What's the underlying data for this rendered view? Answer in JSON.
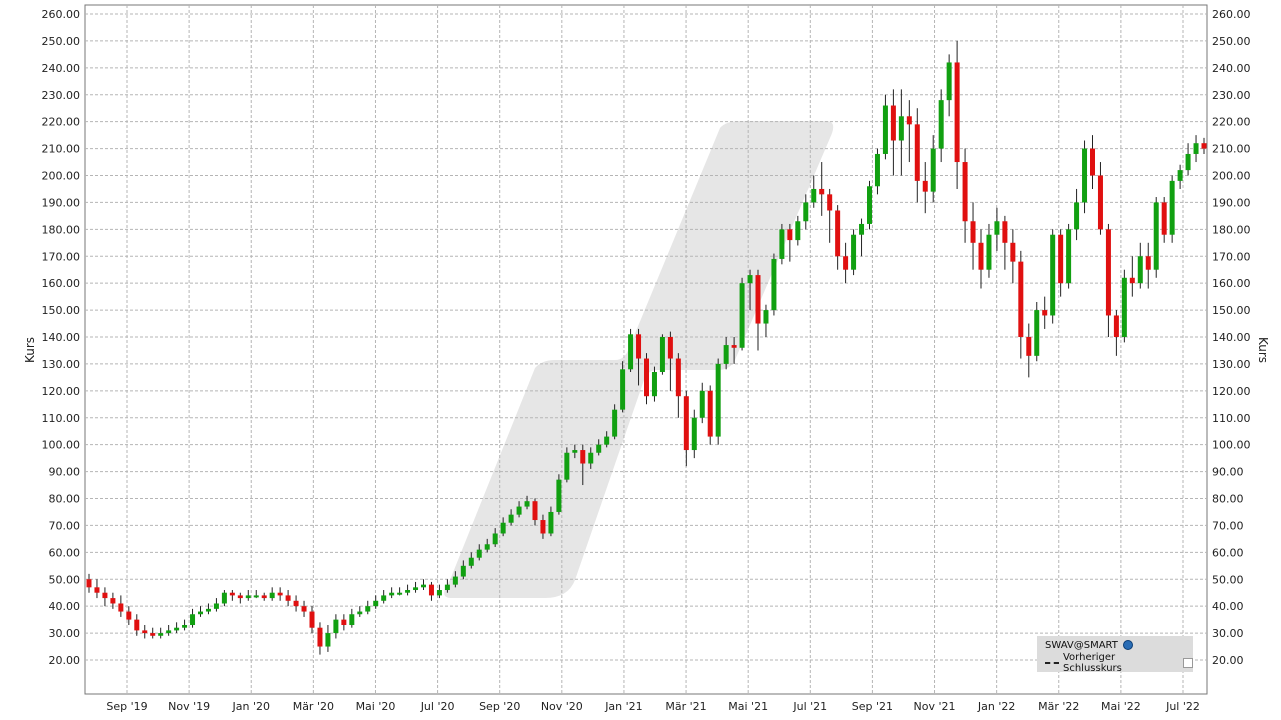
{
  "chart_data": {
    "type": "candlestick",
    "ylabel": "Kurs",
    "ylim": [
      10,
      265
    ],
    "yticks": [
      20,
      30,
      40,
      50,
      60,
      70,
      80,
      90,
      100,
      110,
      120,
      130,
      140,
      150,
      160,
      170,
      180,
      190,
      200,
      210,
      220,
      230,
      240,
      250,
      260
    ],
    "ytick_labels": [
      "20.00",
      "30.00",
      "40.00",
      "50.00",
      "60.00",
      "70.00",
      "80.00",
      "90.00",
      "100.00",
      "110.00",
      "120.00",
      "130.00",
      "140.00",
      "150.00",
      "160.00",
      "170.00",
      "180.00",
      "190.00",
      "200.00",
      "210.00",
      "220.00",
      "230.00",
      "240.00",
      "250.00",
      "260.00"
    ],
    "xticks": [
      "Sep '19",
      "Nov '19",
      "Jan '20",
      "Mär '20",
      "Mai '20",
      "Jul '20",
      "Sep '20",
      "Nov '20",
      "Jan '21",
      "Mär '21",
      "Mai '21",
      "Jul '21",
      "Sep '21",
      "Nov '21",
      "Jan '22",
      "Mär '22",
      "Mai '22",
      "Jul '22"
    ],
    "grid": true,
    "up_color": "#11a011",
    "down_color": "#e01010",
    "candles": [
      [
        50,
        47,
        52,
        45
      ],
      [
        47,
        45,
        50,
        43
      ],
      [
        45,
        43,
        47,
        40
      ],
      [
        43,
        41,
        45,
        39
      ],
      [
        41,
        38,
        44,
        36
      ],
      [
        38,
        35,
        40,
        33
      ],
      [
        35,
        31,
        37,
        29
      ],
      [
        31,
        30,
        33,
        28
      ],
      [
        30,
        29,
        32,
        28
      ],
      [
        29,
        30,
        32,
        28
      ],
      [
        30,
        31,
        33,
        29
      ],
      [
        31,
        32,
        34,
        30
      ],
      [
        32,
        33,
        35,
        31
      ],
      [
        33,
        37,
        39,
        32
      ],
      [
        37,
        38,
        40,
        36
      ],
      [
        38,
        39,
        41,
        37
      ],
      [
        39,
        41,
        43,
        38
      ],
      [
        41,
        45,
        46,
        40
      ],
      [
        45,
        44,
        46,
        42
      ],
      [
        44,
        43,
        45,
        41
      ],
      [
        43,
        44,
        46,
        42
      ],
      [
        44,
        44,
        46,
        43
      ],
      [
        44,
        43,
        45,
        42
      ],
      [
        43,
        45,
        47,
        42
      ],
      [
        45,
        44,
        47,
        42
      ],
      [
        44,
        42,
        46,
        40
      ],
      [
        42,
        40,
        44,
        38
      ],
      [
        40,
        38,
        42,
        36
      ],
      [
        38,
        32,
        40,
        30
      ],
      [
        32,
        25,
        34,
        22
      ],
      [
        25,
        30,
        33,
        23
      ],
      [
        30,
        35,
        37,
        28
      ],
      [
        35,
        33,
        37,
        31
      ],
      [
        33,
        37,
        39,
        32
      ],
      [
        37,
        38,
        40,
        36
      ],
      [
        38,
        40,
        42,
        37
      ],
      [
        40,
        42,
        44,
        39
      ],
      [
        42,
        44,
        46,
        41
      ],
      [
        44,
        45,
        47,
        43
      ],
      [
        45,
        45,
        47,
        44
      ],
      [
        45,
        46,
        48,
        44
      ],
      [
        46,
        47,
        49,
        45
      ],
      [
        47,
        48,
        50,
        46
      ],
      [
        48,
        44,
        49,
        42
      ],
      [
        44,
        46,
        48,
        43
      ],
      [
        46,
        48,
        50,
        45
      ],
      [
        48,
        51,
        53,
        47
      ],
      [
        51,
        55,
        57,
        50
      ],
      [
        55,
        58,
        60,
        54
      ],
      [
        58,
        61,
        63,
        57
      ],
      [
        61,
        63,
        65,
        60
      ],
      [
        63,
        67,
        69,
        62
      ],
      [
        67,
        71,
        73,
        66
      ],
      [
        71,
        74,
        76,
        70
      ],
      [
        74,
        77,
        79,
        73
      ],
      [
        77,
        79,
        81,
        76
      ],
      [
        79,
        72,
        80,
        70
      ],
      [
        72,
        67,
        74,
        65
      ],
      [
        67,
        75,
        77,
        66
      ],
      [
        75,
        87,
        89,
        74
      ],
      [
        87,
        97,
        99,
        86
      ],
      [
        97,
        98,
        100,
        95
      ],
      [
        98,
        93,
        100,
        85
      ],
      [
        93,
        97,
        99,
        91
      ],
      [
        97,
        100,
        102,
        96
      ],
      [
        100,
        103,
        105,
        99
      ],
      [
        103,
        113,
        115,
        102
      ],
      [
        113,
        128,
        131,
        112
      ],
      [
        128,
        141,
        143,
        127
      ],
      [
        141,
        132,
        143,
        122
      ],
      [
        132,
        118,
        134,
        115
      ],
      [
        118,
        127,
        129,
        116
      ],
      [
        127,
        140,
        141,
        126
      ],
      [
        140,
        132,
        142,
        120
      ],
      [
        132,
        118,
        134,
        110
      ],
      [
        118,
        98,
        120,
        92
      ],
      [
        98,
        110,
        113,
        95
      ],
      [
        110,
        120,
        123,
        108
      ],
      [
        120,
        103,
        122,
        100
      ],
      [
        103,
        130,
        132,
        100
      ],
      [
        130,
        137,
        140,
        128
      ],
      [
        137,
        136,
        140,
        130
      ],
      [
        136,
        160,
        162,
        135
      ],
      [
        160,
        163,
        165,
        150
      ],
      [
        163,
        145,
        165,
        135
      ],
      [
        145,
        150,
        152,
        140
      ],
      [
        150,
        169,
        171,
        148
      ],
      [
        169,
        180,
        182,
        167
      ],
      [
        180,
        176,
        182,
        168
      ],
      [
        176,
        183,
        185,
        174
      ],
      [
        183,
        190,
        193,
        180
      ],
      [
        190,
        195,
        200,
        188
      ],
      [
        195,
        193,
        205,
        185
      ],
      [
        193,
        187,
        195,
        175
      ],
      [
        187,
        170,
        189,
        165
      ],
      [
        170,
        165,
        175,
        160
      ],
      [
        165,
        178,
        180,
        163
      ],
      [
        178,
        182,
        184,
        170
      ],
      [
        182,
        196,
        198,
        180
      ],
      [
        196,
        208,
        210,
        193
      ],
      [
        208,
        226,
        230,
        206
      ],
      [
        226,
        213,
        232,
        200
      ],
      [
        213,
        222,
        232,
        200
      ],
      [
        222,
        219,
        228,
        205
      ],
      [
        219,
        198,
        225,
        190
      ],
      [
        198,
        194,
        205,
        186
      ],
      [
        194,
        210,
        215,
        190
      ],
      [
        210,
        228,
        232,
        205
      ],
      [
        228,
        242,
        245,
        222
      ],
      [
        242,
        205,
        250,
        195
      ],
      [
        205,
        183,
        210,
        175
      ],
      [
        183,
        175,
        190,
        165
      ],
      [
        175,
        165,
        180,
        158
      ],
      [
        165,
        178,
        182,
        162
      ],
      [
        178,
        183,
        188,
        172
      ],
      [
        183,
        175,
        185,
        165
      ],
      [
        175,
        168,
        180,
        160
      ],
      [
        168,
        140,
        172,
        132
      ],
      [
        140,
        133,
        145,
        125
      ],
      [
        133,
        150,
        153,
        131
      ],
      [
        150,
        148,
        155,
        143
      ],
      [
        148,
        178,
        180,
        145
      ],
      [
        178,
        160,
        180,
        155
      ],
      [
        160,
        180,
        182,
        158
      ],
      [
        180,
        190,
        195,
        176
      ],
      [
        190,
        210,
        213,
        186
      ],
      [
        210,
        200,
        215,
        195
      ],
      [
        200,
        180,
        205,
        178
      ],
      [
        180,
        148,
        182,
        140
      ],
      [
        148,
        140,
        150,
        133
      ],
      [
        140,
        162,
        165,
        138
      ],
      [
        162,
        160,
        170,
        155
      ],
      [
        160,
        170,
        175,
        158
      ],
      [
        170,
        165,
        175,
        158
      ],
      [
        165,
        190,
        192,
        162
      ],
      [
        190,
        178,
        192,
        175
      ],
      [
        178,
        198,
        200,
        175
      ],
      [
        198,
        202,
        204,
        195
      ],
      [
        202,
        208,
        212,
        200
      ],
      [
        208,
        212,
        215,
        205
      ],
      [
        212,
        210,
        214,
        208
      ]
    ]
  },
  "legend": {
    "instrument": "SWAV@SMART",
    "previous_close": "Vorheriger Schlusskurs"
  }
}
